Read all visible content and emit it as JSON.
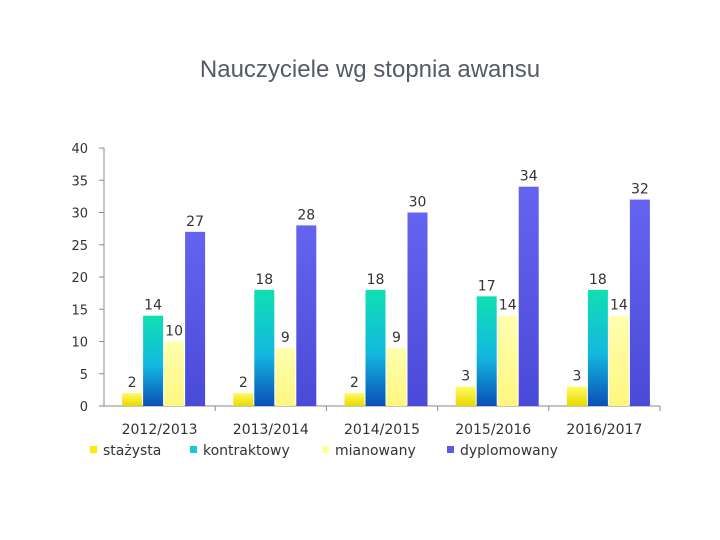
{
  "chart_data": {
    "type": "bar",
    "title": "Nauczyciele  wg stopnia awansu",
    "categories": [
      "2012/2013",
      "2013/2014",
      "2014/2015",
      "2015/2016",
      "2016/2017"
    ],
    "series": [
      {
        "name": "stażysta",
        "values": [
          2,
          2,
          2,
          3,
          3
        ],
        "color": "#f6f000"
      },
      {
        "name": "kontraktowy",
        "values": [
          14,
          18,
          18,
          17,
          18
        ],
        "color": "#16c8d8"
      },
      {
        "name": "mianowany",
        "values": [
          10,
          9,
          9,
          14,
          14
        ],
        "color": "#ffff9e"
      },
      {
        "name": "dyplomowany",
        "values": [
          27,
          28,
          30,
          34,
          32
        ],
        "color": "#5a5ae6"
      }
    ],
    "data_labels_shown": [
      [
        2,
        14,
        10,
        27
      ],
      [
        2,
        18,
        9,
        28
      ],
      [
        2,
        18,
        9,
        30
      ],
      [
        3,
        17,
        14,
        34
      ],
      [
        3,
        18,
        14,
        32
      ]
    ],
    "yticks": [
      0,
      5,
      10,
      15,
      20,
      25,
      30,
      35,
      40
    ],
    "ylim": [
      0,
      40
    ],
    "grid": false,
    "legend": "bottom"
  }
}
